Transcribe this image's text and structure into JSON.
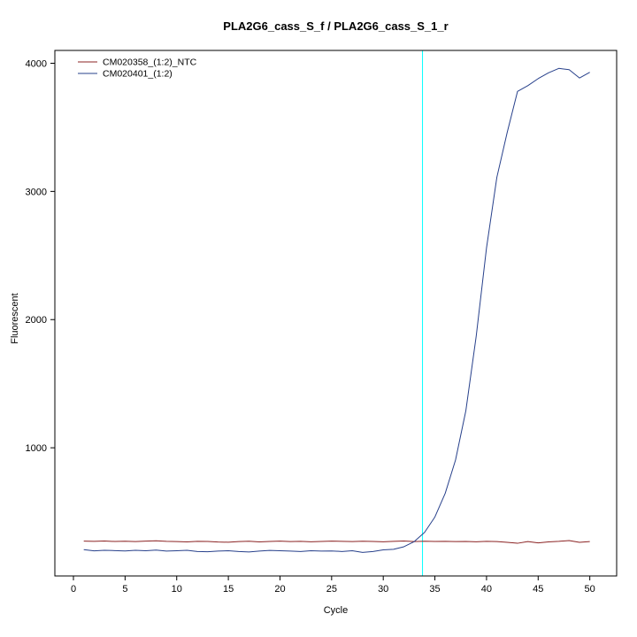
{
  "chart_data": {
    "type": "line",
    "title": "PLA2G6_cass_S_f / PLA2G6_cass_S_1_r",
    "xlabel": "Cycle",
    "ylabel": "Fluorescent",
    "xlim": [
      -1.8,
      52.6
    ],
    "ylim": [
      0,
      4100
    ],
    "x_ticks": [
      0,
      5,
      10,
      15,
      20,
      25,
      30,
      35,
      40,
      45,
      50
    ],
    "y_ticks": [
      1000,
      2000,
      3000,
      4000
    ],
    "grid": false,
    "legend_position": "top-left",
    "threshold_line": {
      "x": 33.8,
      "color": "#00FFFF"
    },
    "cycles_start": 1,
    "cycles_end": 50,
    "series": [
      {
        "name": "CM020358_(1:2)_NTC",
        "color": "#8B2323",
        "values": [
          272,
          270,
          273,
          269,
          271,
          268,
          272,
          274,
          270,
          268,
          266,
          270,
          269,
          265,
          263,
          268,
          271,
          266,
          269,
          272,
          268,
          270,
          267,
          269,
          272,
          270,
          268,
          271,
          269,
          267,
          270,
          273,
          268,
          271,
          269,
          270,
          268,
          269,
          267,
          270,
          268,
          262,
          255,
          268,
          258,
          266,
          270,
          276,
          262,
          268
        ]
      },
      {
        "name": "CM020401_(1:2)",
        "color": "#27408B",
        "values": [
          205,
          196,
          200,
          198,
          195,
          200,
          197,
          202,
          194,
          197,
          200,
          191,
          189,
          194,
          197,
          191,
          187,
          194,
          199,
          197,
          194,
          191,
          197,
          194,
          195,
          191,
          197,
          184,
          191,
          204,
          208,
          228,
          268,
          340,
          460,
          645,
          905,
          1290,
          1870,
          2560,
          3110,
          3460,
          3780,
          3825,
          3880,
          3925,
          3960,
          3950,
          3885,
          3930
        ]
      }
    ]
  }
}
